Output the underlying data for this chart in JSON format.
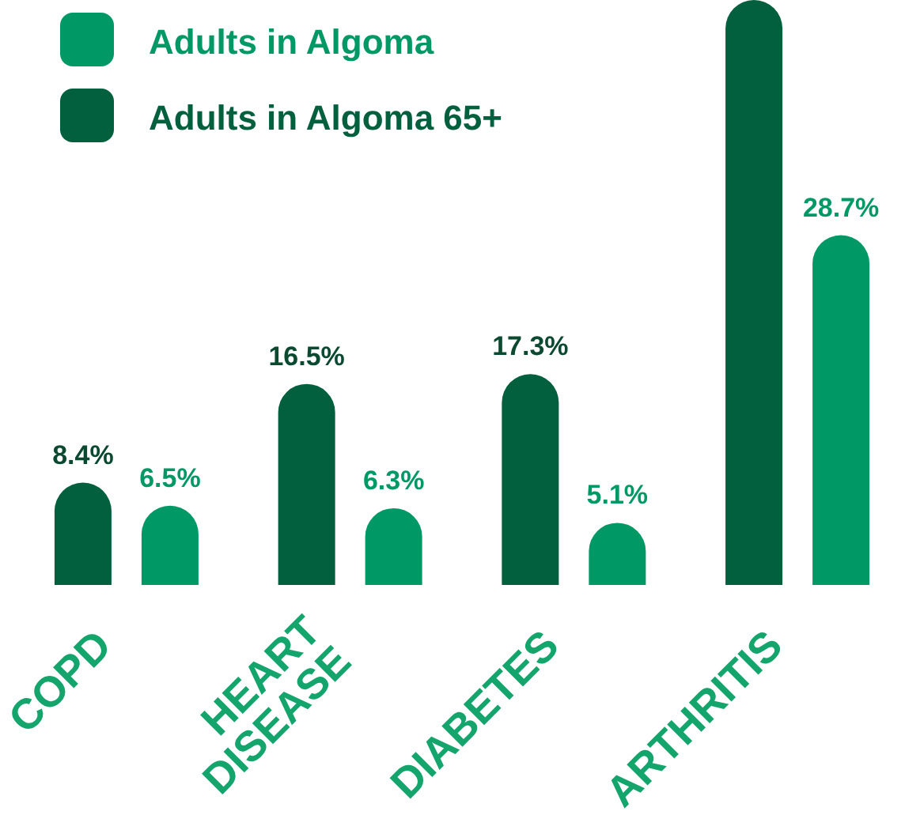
{
  "chart_data": {
    "type": "bar",
    "categories": [
      "COPD",
      "HEART DISEASE",
      "DIABETES",
      "ARTHRITIS"
    ],
    "series": [
      {
        "name": "Adults in Algoma",
        "color": "#009966",
        "values": [
          6.5,
          6.3,
          5.1,
          28.7
        ],
        "value_labels": [
          "6.5%",
          "6.3%",
          "5.1%",
          "28.7%"
        ]
      },
      {
        "name": "Adults in Algoma 65+",
        "color": "#03603f",
        "values": [
          8.4,
          16.5,
          17.3,
          48
        ],
        "value_labels": [
          "8.4%",
          "16.5%",
          "17.3%",
          null
        ]
      }
    ],
    "ylim": [
      0,
      48
    ],
    "tick_labels": "x",
    "legend": "top left"
  }
}
